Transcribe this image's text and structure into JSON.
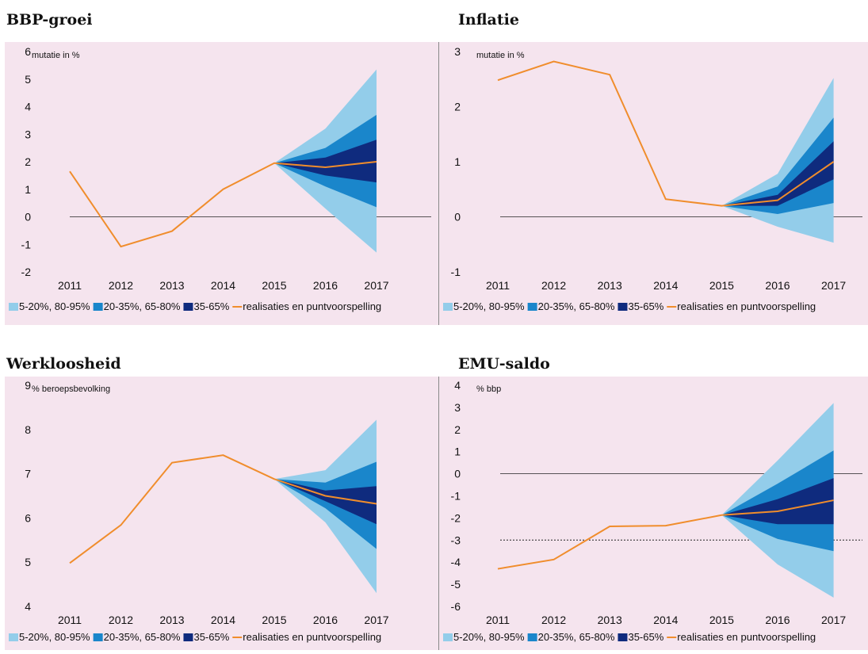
{
  "legend": [
    {
      "label": "5-20%, 80-95%",
      "kind": "band",
      "color": "#93cdea"
    },
    {
      "label": "20-35%, 65-80%",
      "kind": "band",
      "color": "#1a86cb"
    },
    {
      "label": "35-65%",
      "kind": "band",
      "color": "#0f2b7e"
    },
    {
      "label": "realisaties en puntvoorspelling",
      "kind": "line",
      "color": "#f08d2c"
    }
  ],
  "chart_data": [
    {
      "type": "area",
      "title": "BBP-groei",
      "unit_label": "mutatie in %",
      "categories": [
        "2011",
        "2012",
        "2013",
        "2014",
        "2015",
        "2016",
        "2017"
      ],
      "ylim": [
        -2,
        6
      ],
      "yticks": [
        -2,
        -1,
        0,
        1,
        2,
        3,
        4,
        5,
        6
      ],
      "reference_lines": [
        {
          "y": 0,
          "style": "solid"
        }
      ],
      "series": [
        {
          "name": "realisaties en puntvoorspelling",
          "values": [
            1.65,
            -1.08,
            -0.52,
            1.0,
            1.95,
            1.8,
            2.0
          ]
        }
      ],
      "bands": [
        {
          "name": "5-20%, 80-95%",
          "start_index": 4,
          "lower": [
            1.95,
            0.3,
            -1.3
          ],
          "upper": [
            1.95,
            3.2,
            5.35
          ]
        },
        {
          "name": "20-35%, 65-80%",
          "start_index": 4,
          "lower": [
            1.95,
            1.1,
            0.35
          ],
          "upper": [
            1.95,
            2.5,
            3.7
          ]
        },
        {
          "name": "35-65%",
          "start_index": 4,
          "lower": [
            1.95,
            1.5,
            1.25
          ],
          "upper": [
            1.95,
            2.15,
            2.8
          ]
        }
      ]
    },
    {
      "type": "area",
      "title": "Inflatie",
      "unit_label": "mutatie in %",
      "categories": [
        "2011",
        "2012",
        "2013",
        "2014",
        "2015",
        "2016",
        "2017"
      ],
      "ylim": [
        -1,
        3
      ],
      "yticks": [
        -1,
        0,
        1,
        2,
        3
      ],
      "reference_lines": [
        {
          "y": 0,
          "style": "solid"
        }
      ],
      "series": [
        {
          "name": "realisaties en puntvoorspelling",
          "values": [
            2.48,
            2.82,
            2.58,
            0.32,
            0.2,
            0.3,
            1.0
          ]
        }
      ],
      "bands": [
        {
          "name": "5-20%, 80-95%",
          "start_index": 4,
          "lower": [
            0.2,
            -0.18,
            -0.47
          ],
          "upper": [
            0.2,
            0.78,
            2.52
          ]
        },
        {
          "name": "20-35%, 65-80%",
          "start_index": 4,
          "lower": [
            0.2,
            0.05,
            0.25
          ],
          "upper": [
            0.2,
            0.55,
            1.8
          ]
        },
        {
          "name": "35-65%",
          "start_index": 4,
          "lower": [
            0.2,
            0.2,
            0.68
          ],
          "upper": [
            0.2,
            0.4,
            1.37
          ]
        }
      ]
    },
    {
      "type": "area",
      "title": "Werkloosheid",
      "unit_label": "% beroepsbevolking",
      "categories": [
        "2011",
        "2012",
        "2013",
        "2014",
        "2015",
        "2016",
        "2017"
      ],
      "ylim": [
        4,
        9
      ],
      "yticks": [
        4,
        5,
        6,
        7,
        8,
        9
      ],
      "reference_lines": [],
      "series": [
        {
          "name": "realisaties en puntvoorspelling",
          "values": [
            4.98,
            5.84,
            7.25,
            7.42,
            6.88,
            6.5,
            6.32
          ]
        }
      ],
      "bands": [
        {
          "name": "5-20%, 80-95%",
          "start_index": 4,
          "lower": [
            6.88,
            5.9,
            4.3
          ],
          "upper": [
            6.88,
            7.08,
            8.22
          ]
        },
        {
          "name": "20-35%, 65-80%",
          "start_index": 4,
          "lower": [
            6.88,
            6.22,
            5.3
          ],
          "upper": [
            6.88,
            6.8,
            7.27
          ]
        },
        {
          "name": "35-65%",
          "start_index": 4,
          "lower": [
            6.88,
            6.38,
            5.86
          ],
          "upper": [
            6.88,
            6.62,
            6.72
          ]
        }
      ]
    },
    {
      "type": "area",
      "title": "EMU-saldo",
      "unit_label": "% bbp",
      "categories": [
        "2011",
        "2012",
        "2013",
        "2014",
        "2015",
        "2016",
        "2017"
      ],
      "ylim": [
        -6,
        4
      ],
      "yticks": [
        -6,
        -5,
        -4,
        -3,
        -2,
        -1,
        0,
        1,
        2,
        3,
        4
      ],
      "reference_lines": [
        {
          "y": 0,
          "style": "solid"
        },
        {
          "y": -3,
          "style": "dotted"
        }
      ],
      "series": [
        {
          "name": "realisaties en puntvoorspelling",
          "values": [
            -4.3,
            -3.88,
            -2.38,
            -2.35,
            -1.87,
            -1.7,
            -1.2
          ]
        }
      ],
      "bands": [
        {
          "name": "5-20%, 80-95%",
          "start_index": 4,
          "lower": [
            -1.87,
            -4.1,
            -5.6
          ],
          "upper": [
            -1.87,
            0.6,
            3.2
          ]
        },
        {
          "name": "20-35%, 65-80%",
          "start_index": 4,
          "lower": [
            -1.87,
            -2.95,
            -3.5
          ],
          "upper": [
            -1.87,
            -0.45,
            1.05
          ]
        },
        {
          "name": "35-65%",
          "start_index": 4,
          "lower": [
            -1.87,
            -2.28,
            -2.28
          ],
          "upper": [
            -1.87,
            -1.15,
            -0.2
          ]
        }
      ]
    }
  ]
}
